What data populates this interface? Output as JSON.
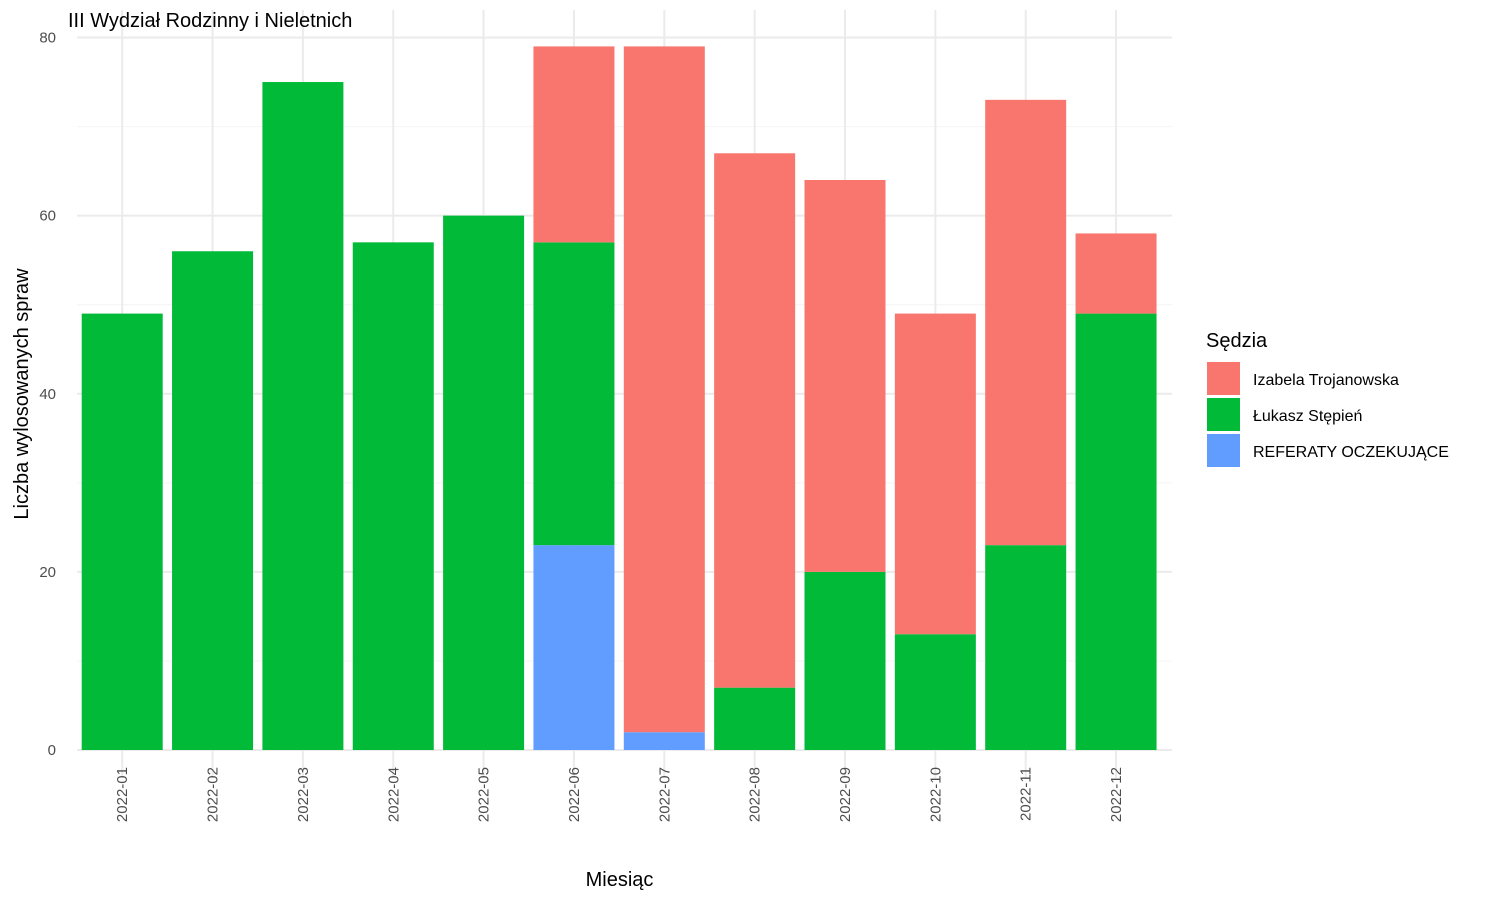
{
  "chart_data": {
    "type": "bar",
    "stacked": true,
    "title": "III Wydział Rodzinny i Nieletnich",
    "xlabel": "Miesiąc",
    "ylabel": "Liczba wylosowanych spraw",
    "ylim": [
      0,
      80
    ],
    "yticks": [
      0,
      20,
      40,
      60,
      80
    ],
    "grid": true,
    "legend_title": "Sędzia",
    "legend_position": "right",
    "categories": [
      "2022-01",
      "2022-02",
      "2022-03",
      "2022-04",
      "2022-05",
      "2022-06",
      "2022-07",
      "2022-08",
      "2022-09",
      "2022-10",
      "2022-11",
      "2022-12"
    ],
    "series": [
      {
        "name": "Izabela Trojanowska",
        "color": "#F8766D",
        "values": [
          0,
          0,
          0,
          0,
          0,
          22,
          77,
          60,
          44,
          36,
          50,
          9
        ]
      },
      {
        "name": "Łukasz Stępień",
        "color": "#00BA38",
        "values": [
          49,
          56,
          75,
          57,
          60,
          34,
          0,
          7,
          20,
          13,
          23,
          49
        ]
      },
      {
        "name": "REFERATY OCZEKUJĄCE",
        "color": "#619CFF",
        "values": [
          0,
          0,
          0,
          0,
          0,
          23,
          2,
          0,
          0,
          0,
          0,
          0
        ]
      }
    ]
  }
}
